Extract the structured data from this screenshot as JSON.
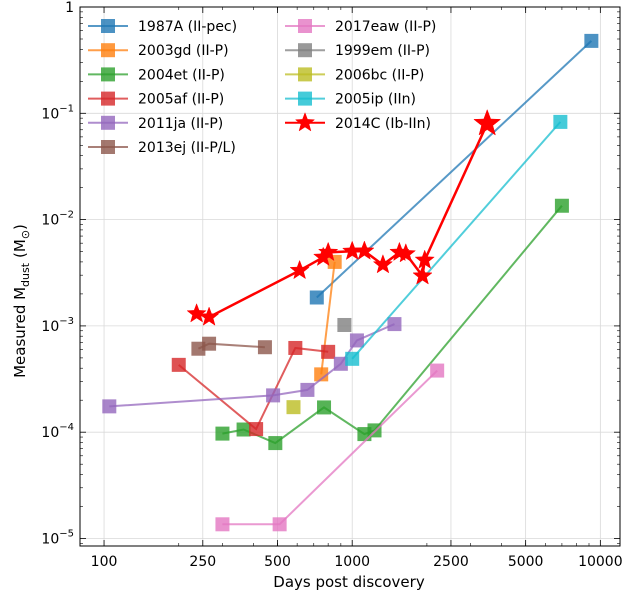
{
  "chart_data": {
    "type": "line",
    "title": "",
    "xlabel": "Days post discovery",
    "ylabel_main": "Measured M",
    "ylabel_sub": "dust",
    "ylabel_unit": "(M",
    "ylabel_unit_close": ")",
    "x_scale": "log",
    "y_scale": "log",
    "xlim": [
      80,
      12000
    ],
    "ylim": [
      8.5e-06,
      1.0
    ],
    "grid": true,
    "legend_position": "top-left, two columns",
    "x_ticks": [
      {
        "value": 100,
        "label": "100"
      },
      {
        "value": 250,
        "label": "250"
      },
      {
        "value": 500,
        "label": "500"
      },
      {
        "value": 1000,
        "label": "1000"
      },
      {
        "value": 2500,
        "label": "2500"
      },
      {
        "value": 5000,
        "label": "5000"
      },
      {
        "value": 10000,
        "label": "10000"
      }
    ],
    "y_ticks": [
      {
        "value": 1e-05,
        "base": "10",
        "exp": "−5"
      },
      {
        "value": 0.0001,
        "base": "10",
        "exp": "−4"
      },
      {
        "value": 0.001,
        "base": "10",
        "exp": "−3"
      },
      {
        "value": 0.01,
        "base": "10",
        "exp": "−2"
      },
      {
        "value": 0.1,
        "base": "10",
        "exp": "−1"
      },
      {
        "value": 1,
        "base": "1",
        "exp": ""
      }
    ],
    "series": [
      {
        "name": "1987A (II-pec)",
        "color": "#1f77b4",
        "marker": "square",
        "x": [
          720,
          9200
        ],
        "y": [
          0.00185,
          0.48
        ]
      },
      {
        "name": "2003gd (II-P)",
        "color": "#ff7f0e",
        "marker": "square",
        "x": [
          750,
          850
        ],
        "y": [
          0.00035,
          0.004
        ]
      },
      {
        "name": "2004et (II-P)",
        "color": "#2ca02c",
        "marker": "square",
        "x": [
          300,
          365,
          490,
          770,
          1120,
          1230,
          7000
        ],
        "y": [
          9.7e-05,
          0.000106,
          7.9e-05,
          0.000171,
          9.6e-05,
          0.000104,
          0.0135
        ]
      },
      {
        "name": "2005af (II-P)",
        "color": "#d62728",
        "marker": "square",
        "x": [
          200,
          410,
          590,
          800
        ],
        "y": [
          0.00043,
          0.000107,
          0.00062,
          0.00057
        ]
      },
      {
        "name": "2011ja (II-P)",
        "color": "#9467bd",
        "marker": "square",
        "x": [
          105,
          480,
          660,
          900,
          1045,
          1480
        ],
        "y": [
          0.000175,
          0.000222,
          0.00025,
          0.00044,
          0.00073,
          0.00104
        ]
      },
      {
        "name": "2013ej (II-P/L)",
        "color": "#8c564b",
        "marker": "square",
        "x": [
          240,
          265,
          445
        ],
        "y": [
          0.00061,
          0.00068,
          0.00063
        ]
      },
      {
        "name": "2017eaw (II-P)",
        "color": "#e377c2",
        "marker": "square",
        "x": [
          300,
          510,
          2200
        ],
        "y": [
          1.36e-05,
          1.36e-05,
          0.00038
        ]
      },
      {
        "name": "1999em (II-P)",
        "color": "#7f7f7f",
        "marker": "square",
        "x": [
          930
        ],
        "y": [
          0.00102
        ]
      },
      {
        "name": "2006bc (II-P)",
        "color": "#bcbd22",
        "marker": "square",
        "x": [
          580
        ],
        "y": [
          0.000172
        ]
      },
      {
        "name": "2005ip (IIn)",
        "color": "#17becf",
        "marker": "square",
        "x": [
          1000,
          6900
        ],
        "y": [
          0.00049,
          0.083
        ]
      },
      {
        "name": "2014C (Ib-IIn)",
        "color": "#ff0000",
        "marker": "star",
        "x": [
          236,
          265,
          614,
          764,
          800,
          1000,
          1120,
          1330,
          1550,
          1645,
          1920,
          1960,
          3500
        ],
        "y": [
          0.0013,
          0.00121,
          0.00332,
          0.00442,
          0.00491,
          0.00503,
          0.00505,
          0.00376,
          0.00491,
          0.00477,
          0.00295,
          0.00415,
          0.0798
        ]
      }
    ]
  }
}
